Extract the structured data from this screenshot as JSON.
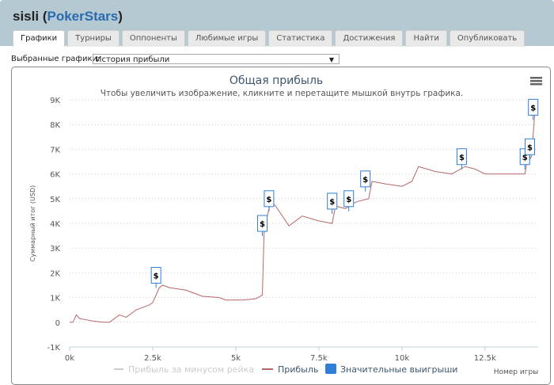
{
  "header": {
    "player": "sisli",
    "network": "PokerStars"
  },
  "tabs": [
    {
      "label": "Графики",
      "active": true
    },
    {
      "label": "Турниры"
    },
    {
      "label": "Оппоненты"
    },
    {
      "label": "Любимые игры"
    },
    {
      "label": "Статистика"
    },
    {
      "label": "Достижения"
    },
    {
      "label": "Найти"
    },
    {
      "label": "Опубликовать"
    }
  ],
  "selector": {
    "label": "Выбранные графики:",
    "value": "История прибыли"
  },
  "chart_data": {
    "type": "line",
    "title": "Общая прибыль",
    "subtitle": "Чтобы увеличить изображение, кликните и перетащите мышкой внутрь графика.",
    "ylabel": "Суммарный итог (USD)",
    "xlabel": "Номер игры",
    "xlim": [
      0,
      14100
    ],
    "ylim": [
      -1000,
      9000
    ],
    "xticks": [
      {
        "v": 0,
        "l": "0k"
      },
      {
        "v": 2500,
        "l": "2.5k"
      },
      {
        "v": 5000,
        "l": "5k"
      },
      {
        "v": 7500,
        "l": "7.5k"
      },
      {
        "v": 10000,
        "l": "10k"
      },
      {
        "v": 12500,
        "l": "12.5k"
      }
    ],
    "yticks": [
      {
        "v": -1000,
        "l": "-1K"
      },
      {
        "v": 0,
        "l": "0"
      },
      {
        "v": 1000,
        "l": "1K"
      },
      {
        "v": 2000,
        "l": "2K"
      },
      {
        "v": 3000,
        "l": "3K"
      },
      {
        "v": 4000,
        "l": "4K"
      },
      {
        "v": 5000,
        "l": "5K"
      },
      {
        "v": 6000,
        "l": "6K"
      },
      {
        "v": 7000,
        "l": "7K"
      },
      {
        "v": 8000,
        "l": "8K"
      },
      {
        "v": 9000,
        "l": "9K"
      }
    ],
    "grid": true,
    "legend": "bottom",
    "series": [
      {
        "name": "Прибыль за минусом рейка",
        "color": "#cccccc",
        "visible": false,
        "points": []
      },
      {
        "name": "Прибыль",
        "color": "#b5676a",
        "points": [
          [
            0,
            0
          ],
          [
            100,
            0
          ],
          [
            200,
            300
          ],
          [
            300,
            150
          ],
          [
            500,
            100
          ],
          [
            700,
            50
          ],
          [
            1000,
            0
          ],
          [
            1200,
            0
          ],
          [
            1300,
            100
          ],
          [
            1500,
            300
          ],
          [
            1700,
            200
          ],
          [
            2000,
            500
          ],
          [
            2200,
            600
          ],
          [
            2400,
            700
          ],
          [
            2500,
            800
          ],
          [
            2600,
            1100
          ],
          [
            2700,
            1400
          ],
          [
            2800,
            1500
          ],
          [
            3000,
            1400
          ],
          [
            3500,
            1300
          ],
          [
            4000,
            1050
          ],
          [
            4500,
            1000
          ],
          [
            4700,
            900
          ],
          [
            5200,
            900
          ],
          [
            5600,
            950
          ],
          [
            5800,
            1100
          ],
          [
            5850,
            3600
          ],
          [
            5950,
            4300
          ],
          [
            6050,
            4900
          ],
          [
            6200,
            4700
          ],
          [
            6400,
            4300
          ],
          [
            6600,
            3900
          ],
          [
            7000,
            4300
          ],
          [
            7500,
            4100
          ],
          [
            7900,
            4000
          ],
          [
            8000,
            4700
          ],
          [
            8300,
            4600
          ],
          [
            8500,
            4800
          ],
          [
            8700,
            4900
          ],
          [
            9000,
            5000
          ],
          [
            9100,
            5700
          ],
          [
            9500,
            5600
          ],
          [
            10000,
            5500
          ],
          [
            10300,
            5700
          ],
          [
            10500,
            6300
          ],
          [
            11000,
            6100
          ],
          [
            11500,
            6000
          ],
          [
            11900,
            6300
          ],
          [
            12200,
            6200
          ],
          [
            12500,
            6000
          ],
          [
            13000,
            6000
          ],
          [
            13700,
            6000
          ],
          [
            13750,
            6400
          ],
          [
            13900,
            6700
          ],
          [
            14000,
            8500
          ]
        ]
      },
      {
        "name": "Значительные выигрыши",
        "color": "#2f7ed8",
        "marker": "$",
        "points": [
          [
            2600,
            1900
          ],
          [
            5800,
            4000
          ],
          [
            6000,
            5000
          ],
          [
            7900,
            4900
          ],
          [
            8400,
            5000
          ],
          [
            8900,
            5800
          ],
          [
            11800,
            6700
          ],
          [
            13700,
            6700
          ],
          [
            13850,
            7100
          ],
          [
            13950,
            8700
          ]
        ]
      }
    ]
  },
  "menu_icon": "hamburger-icon"
}
